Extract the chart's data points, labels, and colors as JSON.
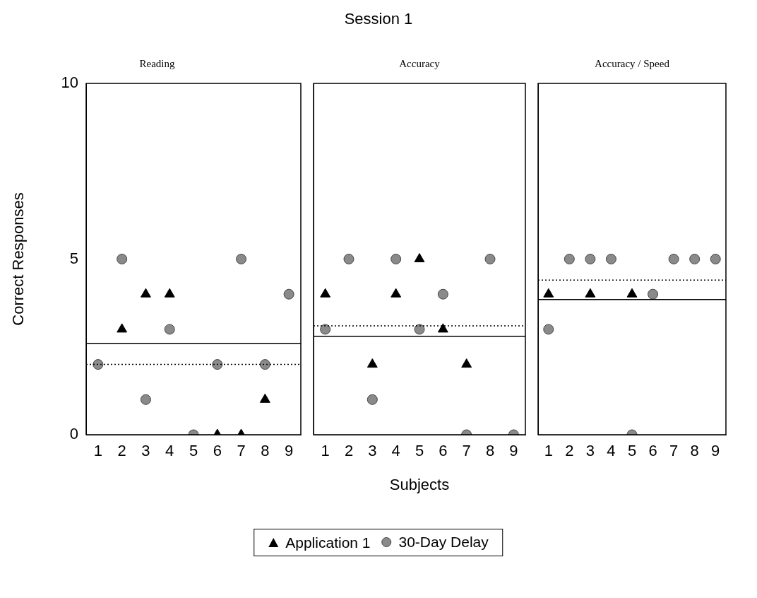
{
  "chart_data": [
    {
      "type": "scatter",
      "title": "Reading",
      "ylabel": "Correct Responses",
      "annotations": [
        "Session 1"
      ],
      "categories": [
        "1",
        "2",
        "3",
        "4",
        "5",
        "6",
        "7",
        "8",
        "9"
      ],
      "ylim": [
        0,
        10
      ],
      "yticks": [
        0,
        5,
        10
      ],
      "grid": false,
      "legend": false,
      "series": [
        {
          "marker": "triangle",
          "color": "#000000",
          "values": [
            null,
            3,
            4,
            4,
            null,
            0,
            0,
            1,
            null
          ]
        },
        {
          "marker": "circle",
          "color": "#8a8a8a",
          "values": [
            2,
            5,
            1,
            3,
            0,
            2,
            5,
            2,
            4
          ]
        }
      ],
      "ref_lines": [
        {
          "axis": "y",
          "value": 2.6,
          "color": "#000000",
          "line_style": "solid"
        },
        {
          "axis": "y",
          "value": 2,
          "color": "#000000",
          "line_style": "dotted"
        }
      ]
    },
    {
      "type": "scatter",
      "title": "Accuracy",
      "xlabel": "Subjects",
      "categories": [
        "1",
        "2",
        "3",
        "4",
        "5",
        "6",
        "7",
        "8",
        "9"
      ],
      "ylim": [
        0,
        10
      ],
      "yticks": [
        0,
        5,
        10
      ],
      "tick_labels": "x",
      "grid": false,
      "legend": "bottom",
      "series": [
        {
          "name": "Application 1",
          "marker": "triangle",
          "color": "#000000",
          "values": [
            4,
            null,
            2,
            4,
            5,
            3,
            2,
            null,
            null
          ]
        },
        {
          "name": "30-Day Delay",
          "marker": "circle",
          "color": "#8a8a8a",
          "values": [
            3,
            5,
            1,
            5,
            3,
            4,
            0,
            5,
            0
          ]
        }
      ],
      "ref_lines": [
        {
          "axis": "y",
          "value": 2.8,
          "color": "#000000",
          "line_style": "solid"
        },
        {
          "axis": "y",
          "value": 3.1,
          "color": "#000000",
          "line_style": "dotted"
        }
      ]
    },
    {
      "type": "scatter",
      "title": "Accuracy / Speed",
      "categories": [
        "1",
        "2",
        "3",
        "4",
        "5",
        "6",
        "7",
        "8",
        "9"
      ],
      "ylim": [
        0,
        10
      ],
      "yticks": [
        0,
        5,
        10
      ],
      "tick_labels": "x",
      "grid": false,
      "legend": false,
      "series": [
        {
          "marker": "triangle",
          "color": "#000000",
          "values": [
            4,
            null,
            4,
            null,
            4,
            null,
            null,
            null,
            null
          ]
        },
        {
          "marker": "circle",
          "color": "#8a8a8a",
          "values": [
            3,
            5,
            5,
            5,
            0,
            4,
            5,
            5,
            5
          ]
        }
      ],
      "ref_lines": [
        {
          "axis": "y",
          "value": 3.85,
          "color": "#000000",
          "line_style": "solid"
        },
        {
          "axis": "y",
          "value": 4.4,
          "color": "#000000",
          "line_style": "dotted"
        }
      ]
    }
  ]
}
